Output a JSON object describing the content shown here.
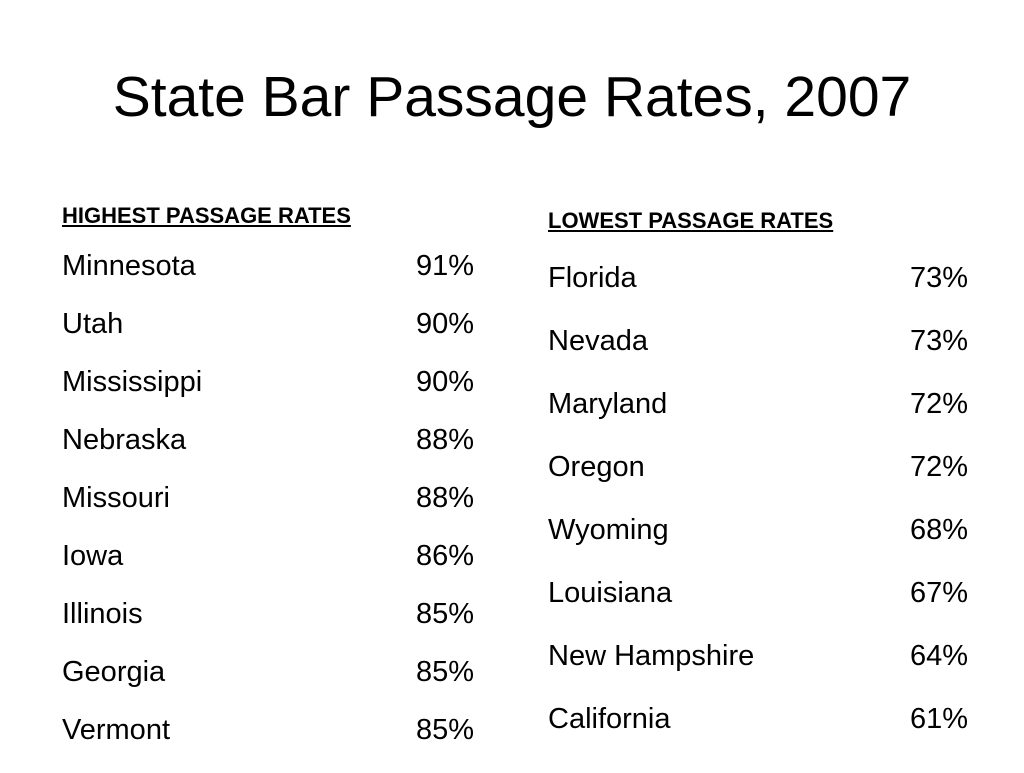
{
  "title": "State Bar Passage Rates, 2007",
  "highest": {
    "heading": "HIGHEST PASSAGE RATES",
    "rows": [
      {
        "state": "Minnesota",
        "rate": "91%"
      },
      {
        "state": "Utah",
        "rate": "90%"
      },
      {
        "state": "Mississippi",
        "rate": "90%"
      },
      {
        "state": "Nebraska",
        "rate": "88%"
      },
      {
        "state": "Missouri",
        "rate": "88%"
      },
      {
        "state": "Iowa",
        "rate": "86%"
      },
      {
        "state": "Illinois",
        "rate": "85%"
      },
      {
        "state": "Georgia",
        "rate": "85%"
      },
      {
        "state": "Vermont",
        "rate": "85%"
      }
    ]
  },
  "lowest": {
    "heading": "LOWEST PASSAGE RATES",
    "rows": [
      {
        "state": "Florida",
        "rate": "73%"
      },
      {
        "state": "Nevada",
        "rate": "73%"
      },
      {
        "state": "Maryland",
        "rate": "72%"
      },
      {
        "state": "Oregon",
        "rate": "72%"
      },
      {
        "state": "Wyoming",
        "rate": "68%"
      },
      {
        "state": "Louisiana",
        "rate": "67%"
      },
      {
        "state": "New Hampshire",
        "rate": "64%"
      },
      {
        "state": "California",
        "rate": "61%"
      }
    ]
  }
}
